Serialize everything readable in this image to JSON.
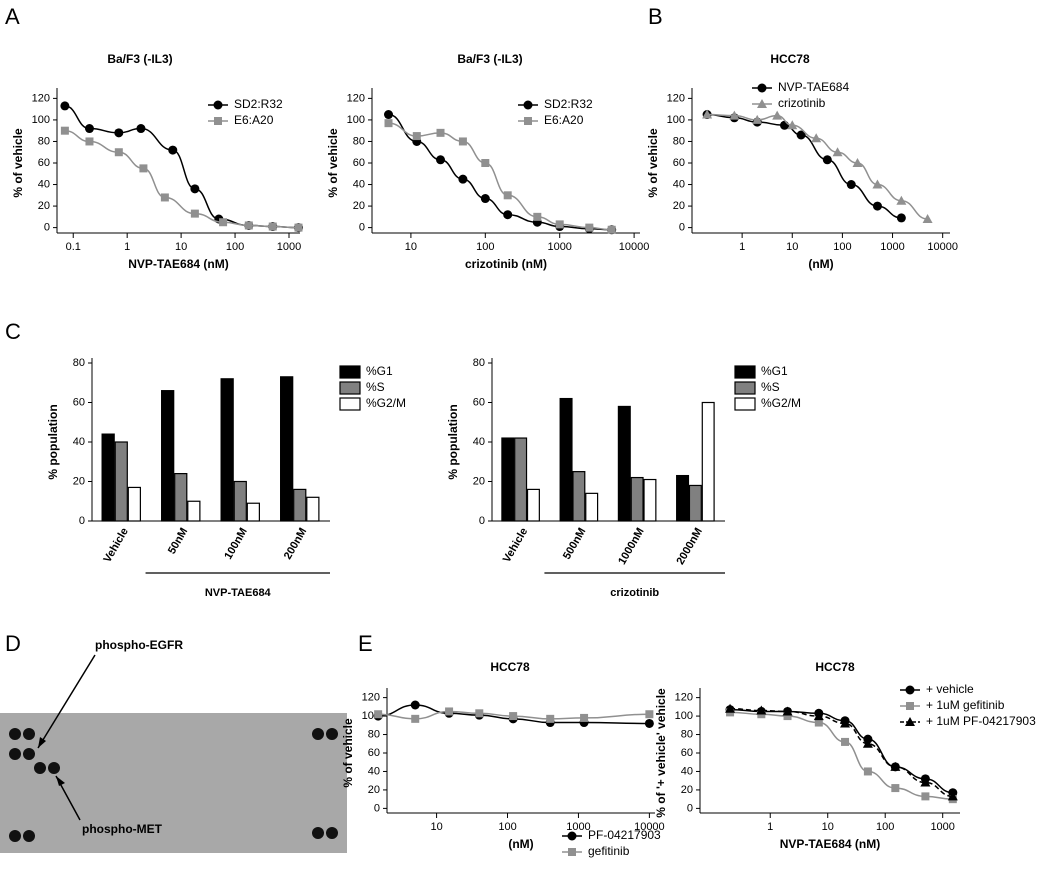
{
  "panel_labels": [
    "A",
    "B",
    "C",
    "D",
    "E"
  ],
  "blot": {
    "labels": [
      "phospho-EGFR",
      "phospho-MET"
    ]
  },
  "chart_data": [
    {
      "type": "line",
      "title": "Ba/F3 (-IL3)",
      "x_label": "NVP-TAE684 (nM)",
      "y_label": "% of vehicle",
      "xscale": "log",
      "xlim": [
        0.05,
        1600
      ],
      "xticks": [
        0.1,
        1,
        10,
        100,
        1000
      ],
      "ylim": [
        -5,
        125
      ],
      "yticks": [
        0,
        20,
        40,
        60,
        80,
        100,
        120
      ],
      "series": [
        {
          "name": "SD2:R32",
          "color": "#000000",
          "marker": "circle",
          "x": [
            0.07,
            0.2,
            0.7,
            1.8,
            7,
            18,
            50,
            180,
            500,
            1500
          ],
          "values": [
            113,
            92,
            88,
            92,
            72,
            36,
            8,
            2,
            1,
            0
          ]
        },
        {
          "name": "E6:A20",
          "color": "#909090",
          "marker": "square",
          "x": [
            0.07,
            0.2,
            0.7,
            2,
            5,
            18,
            60,
            180,
            500,
            1500
          ],
          "values": [
            90,
            80,
            70,
            55,
            28,
            13,
            5,
            2,
            1,
            0
          ]
        }
      ]
    },
    {
      "type": "line",
      "title": "Ba/F3 (-IL3)",
      "x_label": "crizotinib (nM)",
      "y_label": "% of vehicle",
      "xscale": "log",
      "xlim": [
        3,
        12000
      ],
      "xticks": [
        10,
        100,
        1000,
        10000
      ],
      "ylim": [
        -5,
        125
      ],
      "yticks": [
        0,
        20,
        40,
        60,
        80,
        100,
        120
      ],
      "series": [
        {
          "name": "SD2:R32",
          "color": "#000000",
          "marker": "circle",
          "x": [
            5,
            12,
            25,
            50,
            100,
            200,
            500,
            1000,
            2500,
            5000
          ],
          "values": [
            105,
            80,
            63,
            45,
            27,
            12,
            5,
            1,
            -1,
            -2
          ]
        },
        {
          "name": "E6:A20",
          "color": "#909090",
          "marker": "square",
          "x": [
            5,
            12,
            25,
            50,
            100,
            200,
            500,
            1000,
            2500,
            5000
          ],
          "values": [
            97,
            85,
            88,
            80,
            60,
            30,
            10,
            3,
            0,
            -2
          ]
        }
      ]
    },
    {
      "type": "line",
      "title": "HCC78",
      "x_label": "(nM)",
      "y_label": "% of vehicle",
      "xscale": "log",
      "xlim": [
        0.1,
        14000
      ],
      "xticks": [
        1,
        10,
        100,
        1000,
        10000
      ],
      "ylim": [
        -5,
        125
      ],
      "yticks": [
        0,
        20,
        40,
        60,
        80,
        100,
        120
      ],
      "series": [
        {
          "name": "NVP-TAE684",
          "color": "#000000",
          "marker": "circle",
          "x": [
            0.2,
            0.7,
            2,
            7,
            15,
            50,
            150,
            500,
            1500
          ],
          "values": [
            105,
            102,
            98,
            95,
            86,
            63,
            40,
            20,
            9
          ]
        },
        {
          "name": "crizotinib",
          "color": "#909090",
          "marker": "triangle",
          "x": [
            0.2,
            0.7,
            2,
            5,
            10,
            30,
            80,
            200,
            500,
            1500,
            5000
          ],
          "values": [
            105,
            104,
            100,
            104,
            95,
            83,
            70,
            60,
            40,
            25,
            8
          ]
        }
      ]
    },
    {
      "type": "bar",
      "y_label": "% population",
      "group_label": "NVP-TAE684",
      "categories": [
        "Vehicle",
        "50nM",
        "100nM",
        "200nM"
      ],
      "ylim": [
        0,
        80
      ],
      "yticks": [
        0,
        20,
        40,
        60,
        80
      ],
      "series": [
        {
          "name": "%G1",
          "color": "#000000",
          "values": [
            44,
            66,
            72,
            73
          ]
        },
        {
          "name": "%S",
          "color": "#808080",
          "values": [
            40,
            24,
            20,
            16
          ]
        },
        {
          "name": "%G2/M",
          "color": "#ffffff",
          "values": [
            17,
            10,
            9,
            12
          ]
        }
      ]
    },
    {
      "type": "bar",
      "y_label": "% population",
      "group_label": "crizotinib",
      "categories": [
        "Vehicle",
        "500nM",
        "1000nM",
        "2000nM"
      ],
      "ylim": [
        0,
        80
      ],
      "yticks": [
        0,
        20,
        40,
        60,
        80
      ],
      "series": [
        {
          "name": "%G1",
          "color": "#000000",
          "values": [
            42,
            62,
            58,
            23
          ]
        },
        {
          "name": "%S",
          "color": "#808080",
          "values": [
            42,
            25,
            22,
            18
          ]
        },
        {
          "name": "%G2/M",
          "color": "#ffffff",
          "values": [
            16,
            14,
            21,
            60
          ]
        }
      ]
    },
    {
      "type": "line",
      "title": "HCC78",
      "x_label": "(nM)",
      "y_label": "% of vehicle",
      "xscale": "log",
      "xlim": [
        2,
        12000
      ],
      "xticks": [
        10,
        100,
        1000,
        10000
      ],
      "ylim": [
        -5,
        125
      ],
      "yticks": [
        0,
        20,
        40,
        60,
        80,
        100,
        120
      ],
      "series": [
        {
          "name": "PF-04217903",
          "color": "#000000",
          "marker": "circle",
          "x": [
            1.5,
            5,
            15,
            40,
            120,
            400,
            1200,
            10000
          ],
          "values": [
            100,
            112,
            103,
            101,
            97,
            93,
            93,
            92
          ]
        },
        {
          "name": "gefitinib",
          "color": "#909090",
          "marker": "square",
          "x": [
            1.5,
            5,
            15,
            40,
            120,
            400,
            1200,
            10000
          ],
          "values": [
            102,
            97,
            105,
            103,
            100,
            97,
            98,
            102
          ]
        }
      ]
    },
    {
      "type": "line",
      "title": "HCC78",
      "x_label": "NVP-TAE684 (nM)",
      "y_label": "% of '+ vehicle' vehicle",
      "xscale": "log",
      "xlim": [
        0.06,
        2000
      ],
      "xticks": [
        1,
        10,
        100,
        1000
      ],
      "ylim": [
        -5,
        125
      ],
      "yticks": [
        0,
        20,
        40,
        60,
        80,
        100,
        120
      ],
      "series": [
        {
          "name": "+ vehicle",
          "color": "#000000",
          "marker": "circle",
          "x": [
            0.2,
            0.7,
            2,
            7,
            20,
            50,
            150,
            500,
            1500
          ],
          "values": [
            107,
            105,
            105,
            103,
            95,
            75,
            45,
            32,
            17
          ]
        },
        {
          "name": "+ 1uM gefitinib",
          "color": "#909090",
          "marker": "square",
          "x": [
            0.2,
            0.7,
            2,
            7,
            20,
            50,
            150,
            500,
            1500
          ],
          "values": [
            104,
            102,
            100,
            93,
            72,
            40,
            22,
            13,
            10
          ]
        },
        {
          "name": "+ 1uM PF-04217903",
          "color": "#000000",
          "marker": "triangle",
          "dash": true,
          "x": [
            0.2,
            0.7,
            2,
            7,
            20,
            50,
            150,
            500,
            1500
          ],
          "values": [
            108,
            106,
            105,
            100,
            92,
            70,
            45,
            28,
            13
          ]
        }
      ]
    }
  ]
}
